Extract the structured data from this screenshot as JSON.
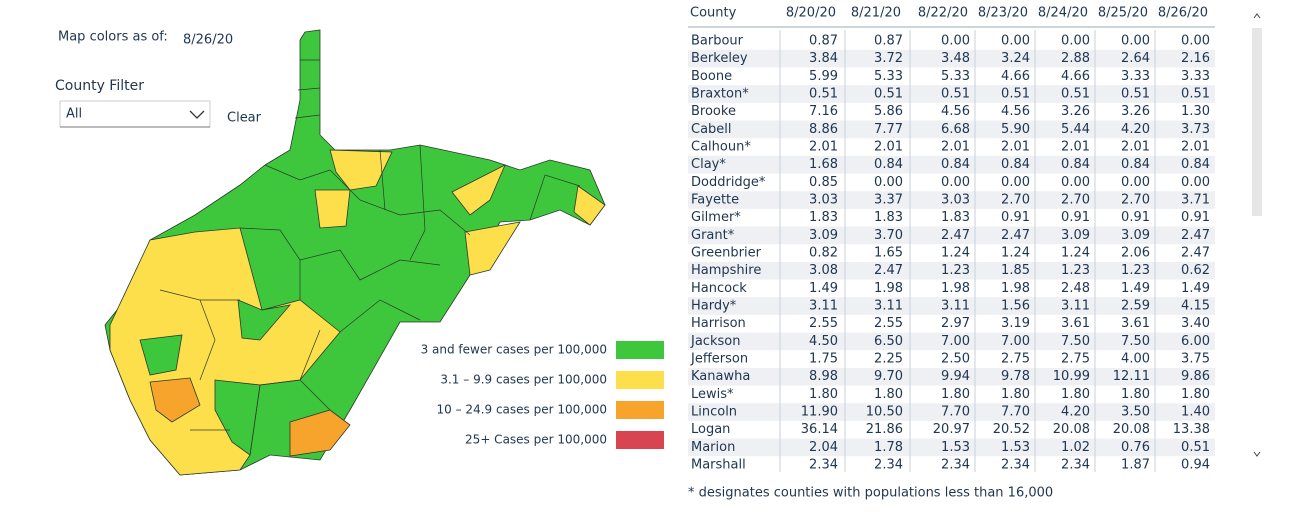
{
  "map_header": {
    "label": "Map colors as of:",
    "date": "8/26/20"
  },
  "filter": {
    "label": "County Filter",
    "selected": "All",
    "clear": "Clear"
  },
  "legend": [
    {
      "label": "3 and fewer cases per 100,000",
      "color": "#3ec73c"
    },
    {
      "label": "3.1 – 9.9 cases per 100,000",
      "color": "#fddf4b"
    },
    {
      "label": "10 – 24.9 cases per 100,000",
      "color": "#f6a42b"
    },
    {
      "label": "25+ Cases per 100,000",
      "color": "#d84450"
    }
  ],
  "table": {
    "columns": [
      "County",
      "8/20/20",
      "8/21/20",
      "8/22/20",
      "8/23/20",
      "8/24/20",
      "8/25/20",
      "8/26/20"
    ],
    "rows": [
      [
        "Barbour",
        "0.87",
        "0.87",
        "0.00",
        "0.00",
        "0.00",
        "0.00",
        "0.00"
      ],
      [
        "Berkeley",
        "3.84",
        "3.72",
        "3.48",
        "3.24",
        "2.88",
        "2.64",
        "2.16"
      ],
      [
        "Boone",
        "5.99",
        "5.33",
        "5.33",
        "4.66",
        "4.66",
        "3.33",
        "3.33"
      ],
      [
        "Braxton*",
        "0.51",
        "0.51",
        "0.51",
        "0.51",
        "0.51",
        "0.51",
        "0.51"
      ],
      [
        "Brooke",
        "7.16",
        "5.86",
        "4.56",
        "4.56",
        "3.26",
        "3.26",
        "1.30"
      ],
      [
        "Cabell",
        "8.86",
        "7.77",
        "6.68",
        "5.90",
        "5.44",
        "4.20",
        "3.73"
      ],
      [
        "Calhoun*",
        "2.01",
        "2.01",
        "2.01",
        "2.01",
        "2.01",
        "2.01",
        "2.01"
      ],
      [
        "Clay*",
        "1.68",
        "0.84",
        "0.84",
        "0.84",
        "0.84",
        "0.84",
        "0.84"
      ],
      [
        "Doddridge*",
        "0.85",
        "0.00",
        "0.00",
        "0.00",
        "0.00",
        "0.00",
        "0.00"
      ],
      [
        "Fayette",
        "3.03",
        "3.37",
        "3.03",
        "2.70",
        "2.70",
        "2.70",
        "3.71"
      ],
      [
        "Gilmer*",
        "1.83",
        "1.83",
        "1.83",
        "0.91",
        "0.91",
        "0.91",
        "0.91"
      ],
      [
        "Grant*",
        "3.09",
        "3.70",
        "2.47",
        "2.47",
        "3.09",
        "3.09",
        "2.47"
      ],
      [
        "Greenbrier",
        "0.82",
        "1.65",
        "1.24",
        "1.24",
        "1.24",
        "2.06",
        "2.47"
      ],
      [
        "Hampshire",
        "3.08",
        "2.47",
        "1.23",
        "1.85",
        "1.23",
        "1.23",
        "0.62"
      ],
      [
        "Hancock",
        "1.49",
        "1.98",
        "1.98",
        "1.98",
        "2.48",
        "1.49",
        "1.49"
      ],
      [
        "Hardy*",
        "3.11",
        "3.11",
        "3.11",
        "1.56",
        "3.11",
        "2.59",
        "4.15"
      ],
      [
        "Harrison",
        "2.55",
        "2.55",
        "2.97",
        "3.19",
        "3.61",
        "3.61",
        "3.40"
      ],
      [
        "Jackson",
        "4.50",
        "6.50",
        "7.00",
        "7.00",
        "7.50",
        "7.50",
        "6.00"
      ],
      [
        "Jefferson",
        "1.75",
        "2.25",
        "2.50",
        "2.75",
        "2.75",
        "4.00",
        "3.75"
      ],
      [
        "Kanawha",
        "8.98",
        "9.70",
        "9.94",
        "9.78",
        "10.99",
        "12.11",
        "9.86"
      ],
      [
        "Lewis*",
        "1.80",
        "1.80",
        "1.80",
        "1.80",
        "1.80",
        "1.80",
        "1.80"
      ],
      [
        "Lincoln",
        "11.90",
        "10.50",
        "7.70",
        "7.70",
        "4.20",
        "3.50",
        "1.40"
      ],
      [
        "Logan",
        "36.14",
        "21.86",
        "20.97",
        "20.52",
        "20.08",
        "20.08",
        "13.38"
      ],
      [
        "Marion",
        "2.04",
        "1.78",
        "1.53",
        "1.53",
        "1.02",
        "0.76",
        "0.51"
      ],
      [
        "Marshall",
        "2.34",
        "2.34",
        "2.34",
        "2.34",
        "2.34",
        "1.87",
        "0.94"
      ]
    ]
  },
  "footnote": "* designates counties with populations less than 16,000"
}
